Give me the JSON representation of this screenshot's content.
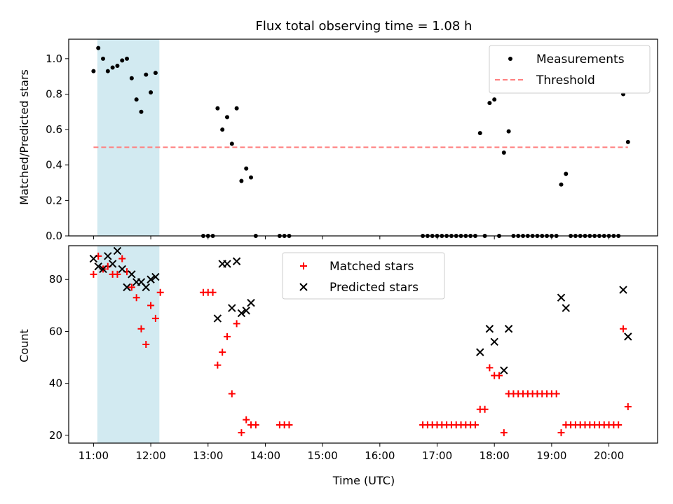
{
  "figure": {
    "title": "Flux total observing time = 1.08 h",
    "xlabel": "Time (UTC)"
  },
  "colors": {
    "measurement": "#000000",
    "threshold": "#ff7f7f",
    "matched": "#ff0000",
    "predicted": "#000000",
    "shade": "#add8e6"
  },
  "chart_data": [
    {
      "type": "scatter",
      "ylabel": "Matched/Predicted stars",
      "xlim": [
        "10:34",
        "20:51"
      ],
      "ylim": [
        0,
        1.11
      ],
      "x_ticks": [
        "11:00",
        "12:00",
        "13:00",
        "14:00",
        "15:00",
        "16:00",
        "17:00",
        "18:00",
        "19:00",
        "20:00"
      ],
      "y_ticks": [
        "0.0",
        "0.2",
        "0.4",
        "0.6",
        "0.8",
        "1.0"
      ],
      "y_tick_values": [
        0,
        0.2,
        0.4,
        0.6,
        0.8,
        1.0
      ],
      "legend_position": "top-right",
      "shaded_span": [
        "11:04",
        "12:09"
      ],
      "series": [
        {
          "name": "Measurements",
          "marker": "dot",
          "points": [
            [
              "11:00",
              0.93
            ],
            [
              "11:05",
              1.06
            ],
            [
              "11:10",
              1.0
            ],
            [
              "11:15",
              0.93
            ],
            [
              "11:20",
              0.95
            ],
            [
              "11:25",
              0.96
            ],
            [
              "11:30",
              0.99
            ],
            [
              "11:35",
              1.0
            ],
            [
              "11:40",
              0.89
            ],
            [
              "11:45",
              0.77
            ],
            [
              "11:50",
              0.7
            ],
            [
              "11:55",
              0.91
            ],
            [
              "12:00",
              0.81
            ],
            [
              "12:05",
              0.92
            ],
            [
              "12:55",
              0.0
            ],
            [
              "13:00",
              0.0
            ],
            [
              "13:05",
              0.0
            ],
            [
              "13:10",
              0.72
            ],
            [
              "13:15",
              0.6
            ],
            [
              "13:20",
              0.67
            ],
            [
              "13:25",
              0.52
            ],
            [
              "13:30",
              0.72
            ],
            [
              "13:35",
              0.31
            ],
            [
              "13:40",
              0.38
            ],
            [
              "13:45",
              0.33
            ],
            [
              "13:50",
              0.0
            ],
            [
              "14:15",
              0.0
            ],
            [
              "14:20",
              0.0
            ],
            [
              "14:25",
              0.0
            ],
            [
              "16:45",
              0.0
            ],
            [
              "16:50",
              0.0
            ],
            [
              "16:55",
              0.0
            ],
            [
              "17:00",
              0.0
            ],
            [
              "17:05",
              0.0
            ],
            [
              "17:10",
              0.0
            ],
            [
              "17:15",
              0.0
            ],
            [
              "17:20",
              0.0
            ],
            [
              "17:25",
              0.0
            ],
            [
              "17:30",
              0.0
            ],
            [
              "17:35",
              0.0
            ],
            [
              "17:40",
              0.0
            ],
            [
              "17:45",
              0.58
            ],
            [
              "17:50",
              0.0
            ],
            [
              "17:55",
              0.75
            ],
            [
              "18:00",
              0.77
            ],
            [
              "18:05",
              0.0
            ],
            [
              "18:10",
              0.47
            ],
            [
              "18:15",
              0.59
            ],
            [
              "18:20",
              0.0
            ],
            [
              "18:25",
              0.0
            ],
            [
              "18:30",
              0.0
            ],
            [
              "18:35",
              0.0
            ],
            [
              "18:40",
              0.0
            ],
            [
              "18:45",
              0.0
            ],
            [
              "18:50",
              0.0
            ],
            [
              "18:55",
              0.0
            ],
            [
              "19:00",
              0.0
            ],
            [
              "19:05",
              0.0
            ],
            [
              "19:10",
              0.29
            ],
            [
              "19:15",
              0.35
            ],
            [
              "19:20",
              0.0
            ],
            [
              "19:25",
              0.0
            ],
            [
              "19:30",
              0.0
            ],
            [
              "19:35",
              0.0
            ],
            [
              "19:40",
              0.0
            ],
            [
              "19:45",
              0.0
            ],
            [
              "19:50",
              0.0
            ],
            [
              "19:55",
              0.0
            ],
            [
              "20:00",
              0.0
            ],
            [
              "20:05",
              0.0
            ],
            [
              "20:10",
              0.0
            ],
            [
              "20:15",
              0.8
            ],
            [
              "20:20",
              0.53
            ]
          ]
        },
        {
          "name": "Threshold",
          "marker": "dashed-line",
          "points": [
            [
              "11:00",
              0.5
            ],
            [
              "20:20",
              0.5
            ]
          ]
        }
      ]
    },
    {
      "type": "scatter",
      "ylabel": "Count",
      "xlim": [
        "10:34",
        "20:51"
      ],
      "ylim": [
        17,
        93
      ],
      "x_ticks": [
        "11:00",
        "12:00",
        "13:00",
        "14:00",
        "15:00",
        "16:00",
        "17:00",
        "18:00",
        "19:00",
        "20:00"
      ],
      "y_ticks": [
        "20",
        "40",
        "60",
        "80"
      ],
      "y_tick_values": [
        20,
        40,
        60,
        80
      ],
      "legend_position": "top-center",
      "shaded_span": [
        "11:04",
        "12:09"
      ],
      "series": [
        {
          "name": "Matched stars",
          "marker": "plus",
          "points": [
            [
              "11:00",
              82
            ],
            [
              "11:05",
              89
            ],
            [
              "11:10",
              84
            ],
            [
              "11:15",
              85
            ],
            [
              "11:20",
              82
            ],
            [
              "11:25",
              82
            ],
            [
              "11:30",
              88
            ],
            [
              "11:35",
              83
            ],
            [
              "11:40",
              77
            ],
            [
              "11:45",
              73
            ],
            [
              "11:50",
              61
            ],
            [
              "11:55",
              55
            ],
            [
              "12:00",
              70
            ],
            [
              "12:05",
              65
            ],
            [
              "12:10",
              75
            ],
            [
              "12:55",
              75
            ],
            [
              "13:00",
              75
            ],
            [
              "13:05",
              75
            ],
            [
              "13:10",
              47
            ],
            [
              "13:15",
              52
            ],
            [
              "13:20",
              58
            ],
            [
              "13:25",
              36
            ],
            [
              "13:30",
              63
            ],
            [
              "13:35",
              21
            ],
            [
              "13:40",
              26
            ],
            [
              "13:45",
              24
            ],
            [
              "13:50",
              24
            ],
            [
              "14:15",
              24
            ],
            [
              "14:20",
              24
            ],
            [
              "14:25",
              24
            ],
            [
              "16:45",
              24
            ],
            [
              "16:50",
              24
            ],
            [
              "16:55",
              24
            ],
            [
              "17:00",
              24
            ],
            [
              "17:05",
              24
            ],
            [
              "17:10",
              24
            ],
            [
              "17:15",
              24
            ],
            [
              "17:20",
              24
            ],
            [
              "17:25",
              24
            ],
            [
              "17:30",
              24
            ],
            [
              "17:35",
              24
            ],
            [
              "17:40",
              24
            ],
            [
              "17:45",
              30
            ],
            [
              "17:50",
              30
            ],
            [
              "17:55",
              46
            ],
            [
              "18:00",
              43
            ],
            [
              "18:05",
              43
            ],
            [
              "18:10",
              21
            ],
            [
              "18:15",
              36
            ],
            [
              "18:20",
              36
            ],
            [
              "18:25",
              36
            ],
            [
              "18:30",
              36
            ],
            [
              "18:35",
              36
            ],
            [
              "18:40",
              36
            ],
            [
              "18:45",
              36
            ],
            [
              "18:50",
              36
            ],
            [
              "18:55",
              36
            ],
            [
              "19:00",
              36
            ],
            [
              "19:05",
              36
            ],
            [
              "19:10",
              21
            ],
            [
              "19:15",
              24
            ],
            [
              "19:20",
              24
            ],
            [
              "19:25",
              24
            ],
            [
              "19:30",
              24
            ],
            [
              "19:35",
              24
            ],
            [
              "19:40",
              24
            ],
            [
              "19:45",
              24
            ],
            [
              "19:50",
              24
            ],
            [
              "19:55",
              24
            ],
            [
              "20:00",
              24
            ],
            [
              "20:05",
              24
            ],
            [
              "20:10",
              24
            ],
            [
              "20:15",
              61
            ],
            [
              "20:20",
              31
            ]
          ]
        },
        {
          "name": "Predicted stars",
          "marker": "x",
          "points": [
            [
              "11:00",
              88
            ],
            [
              "11:05",
              85
            ],
            [
              "11:10",
              84
            ],
            [
              "11:15",
              89
            ],
            [
              "11:20",
              86
            ],
            [
              "11:25",
              91
            ],
            [
              "11:30",
              84
            ],
            [
              "11:35",
              77
            ],
            [
              "11:40",
              82
            ],
            [
              "11:45",
              79
            ],
            [
              "11:50",
              79
            ],
            [
              "11:55",
              77
            ],
            [
              "12:00",
              80
            ],
            [
              "12:05",
              81
            ],
            [
              "13:10",
              65
            ],
            [
              "13:15",
              86
            ],
            [
              "13:20",
              86
            ],
            [
              "13:25",
              69
            ],
            [
              "13:30",
              87
            ],
            [
              "13:35",
              67
            ],
            [
              "13:40",
              68
            ],
            [
              "13:45",
              71
            ],
            [
              "17:45",
              52
            ],
            [
              "17:55",
              61
            ],
            [
              "18:00",
              56
            ],
            [
              "18:10",
              45
            ],
            [
              "18:15",
              61
            ],
            [
              "19:10",
              73
            ],
            [
              "19:15",
              69
            ],
            [
              "20:15",
              76
            ],
            [
              "20:20",
              58
            ]
          ]
        }
      ]
    }
  ]
}
